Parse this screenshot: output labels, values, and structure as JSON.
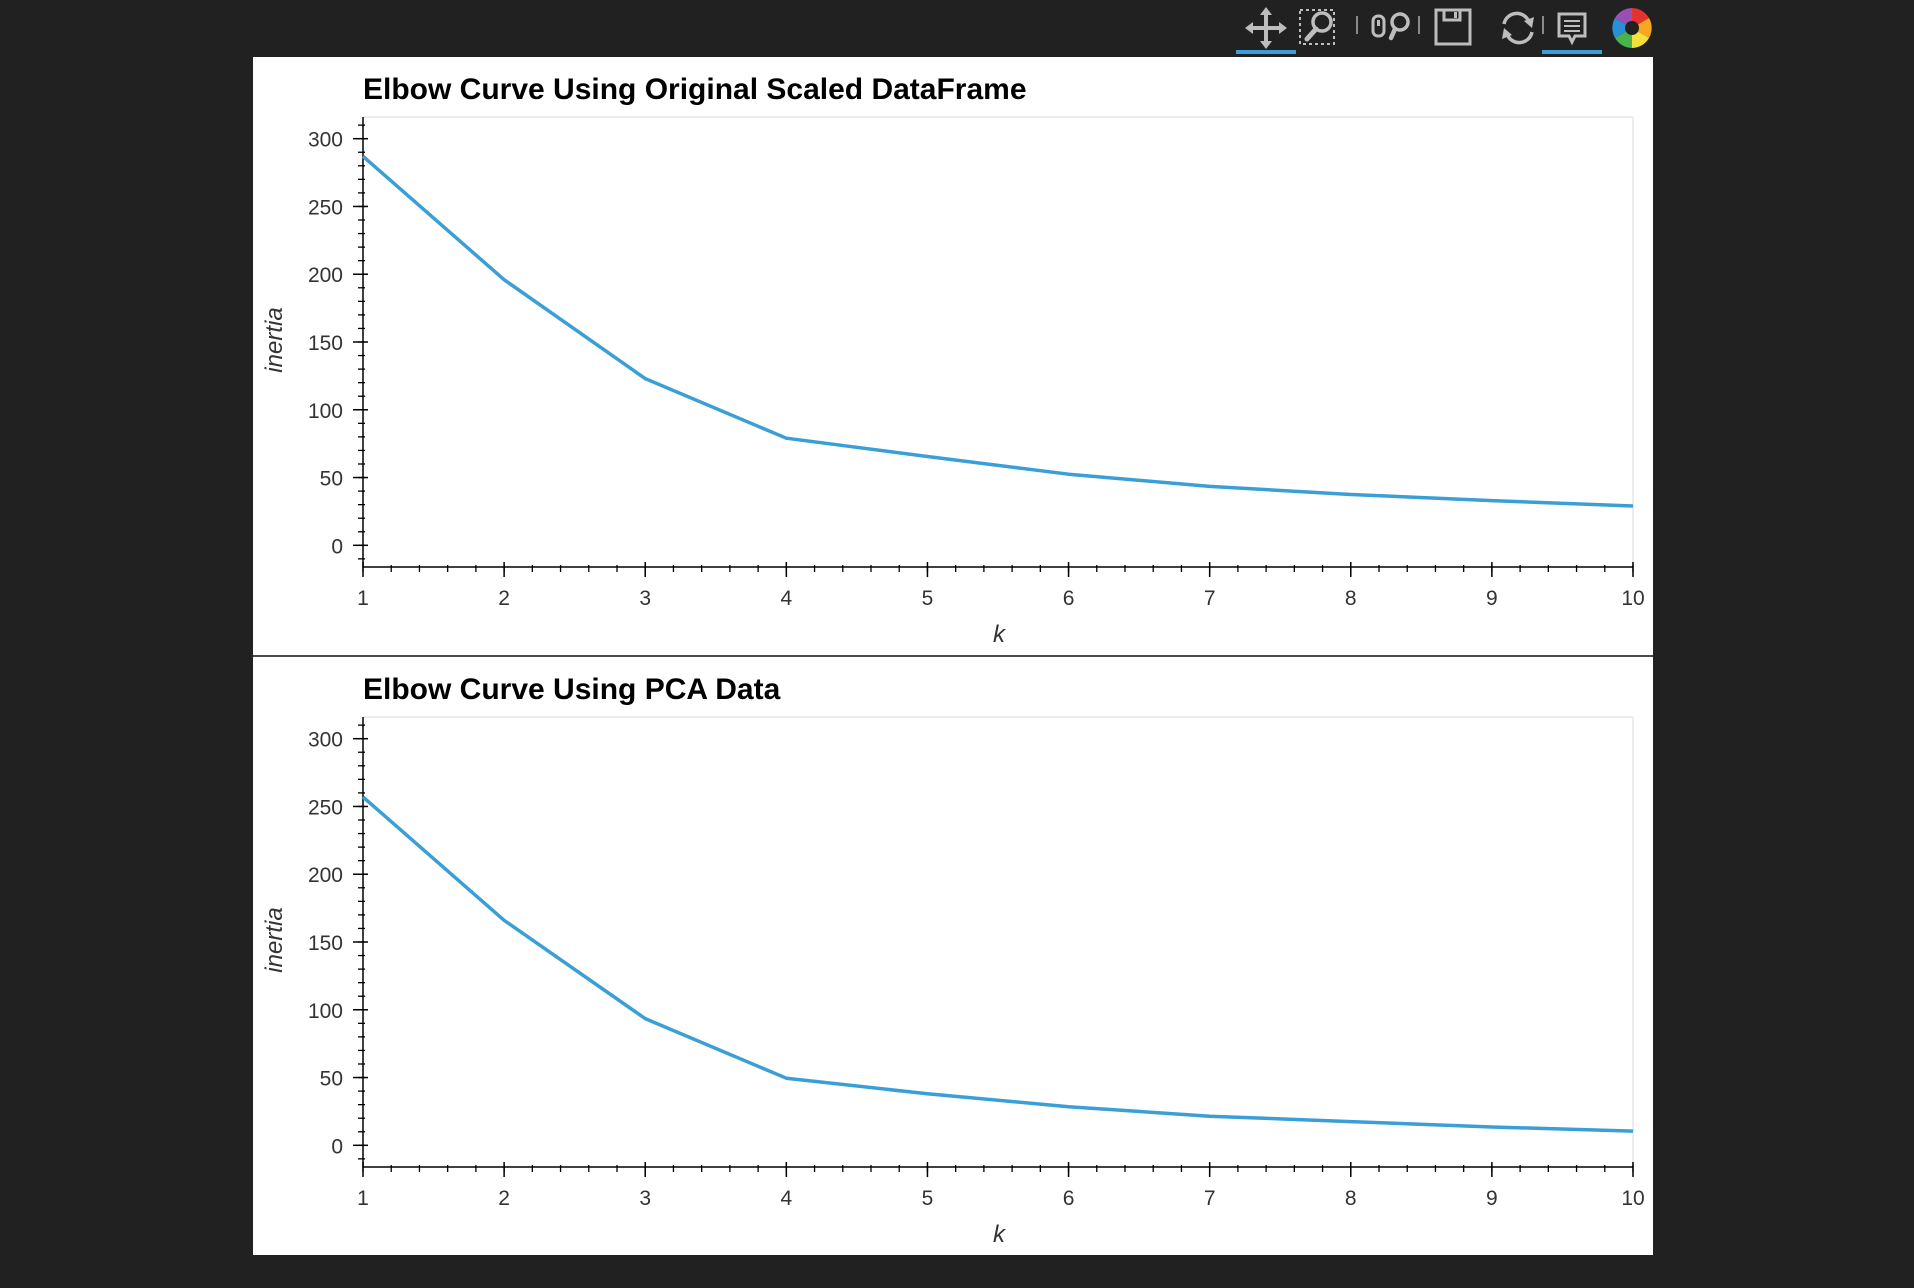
{
  "toolbar": {
    "tools": [
      {
        "name": "pan-tool",
        "icon": "pan-icon",
        "active": true
      },
      {
        "name": "box-zoom-tool",
        "icon": "box-zoom-icon",
        "active": false
      },
      {
        "name": "wheel-zoom-tool",
        "icon": "wheel-zoom-icon",
        "active": false
      },
      {
        "name": "save-tool",
        "icon": "save-icon",
        "active": false
      },
      {
        "name": "reset-tool",
        "icon": "reset-icon",
        "active": false
      },
      {
        "name": "hover-tool",
        "icon": "hover-icon",
        "active": true
      },
      {
        "name": "bokeh-logo",
        "icon": "bokeh-logo-icon",
        "active": false
      }
    ],
    "accent_color": "#3a9fd6"
  },
  "chart_data": [
    {
      "type": "line",
      "title": "Elbow Curve Using Original Scaled DataFrame",
      "xlabel": "k",
      "ylabel": "inertia",
      "x": [
        1,
        2,
        3,
        4,
        5,
        6,
        7,
        8,
        9,
        10
      ],
      "y": [
        287,
        196,
        123,
        79,
        65.5,
        52.5,
        43.5,
        37.5,
        33,
        29
      ],
      "xlim": [
        1,
        10
      ],
      "ylim": [
        -16,
        316
      ],
      "xticks": [
        "1",
        "2",
        "3",
        "4",
        "5",
        "6",
        "7",
        "8",
        "9",
        "10"
      ],
      "yticks": [
        "0",
        "50",
        "100",
        "150",
        "200",
        "250",
        "300"
      ],
      "line_color": "#3a9fd6",
      "grid": false
    },
    {
      "type": "line",
      "title": "Elbow Curve Using PCA Data",
      "xlabel": "k",
      "ylabel": "inertia",
      "x": [
        1,
        2,
        3,
        4,
        5,
        6,
        7,
        8,
        9,
        10
      ],
      "y": [
        257,
        166,
        93.5,
        49.5,
        38,
        28.5,
        21.5,
        17.5,
        13.5,
        10.5
      ],
      "xlim": [
        1,
        10
      ],
      "ylim": [
        -16,
        316
      ],
      "xticks": [
        "1",
        "2",
        "3",
        "4",
        "5",
        "6",
        "7",
        "8",
        "9",
        "10"
      ],
      "yticks": [
        "0",
        "50",
        "100",
        "150",
        "200",
        "250",
        "300"
      ],
      "line_color": "#3a9fd6",
      "grid": false
    }
  ]
}
